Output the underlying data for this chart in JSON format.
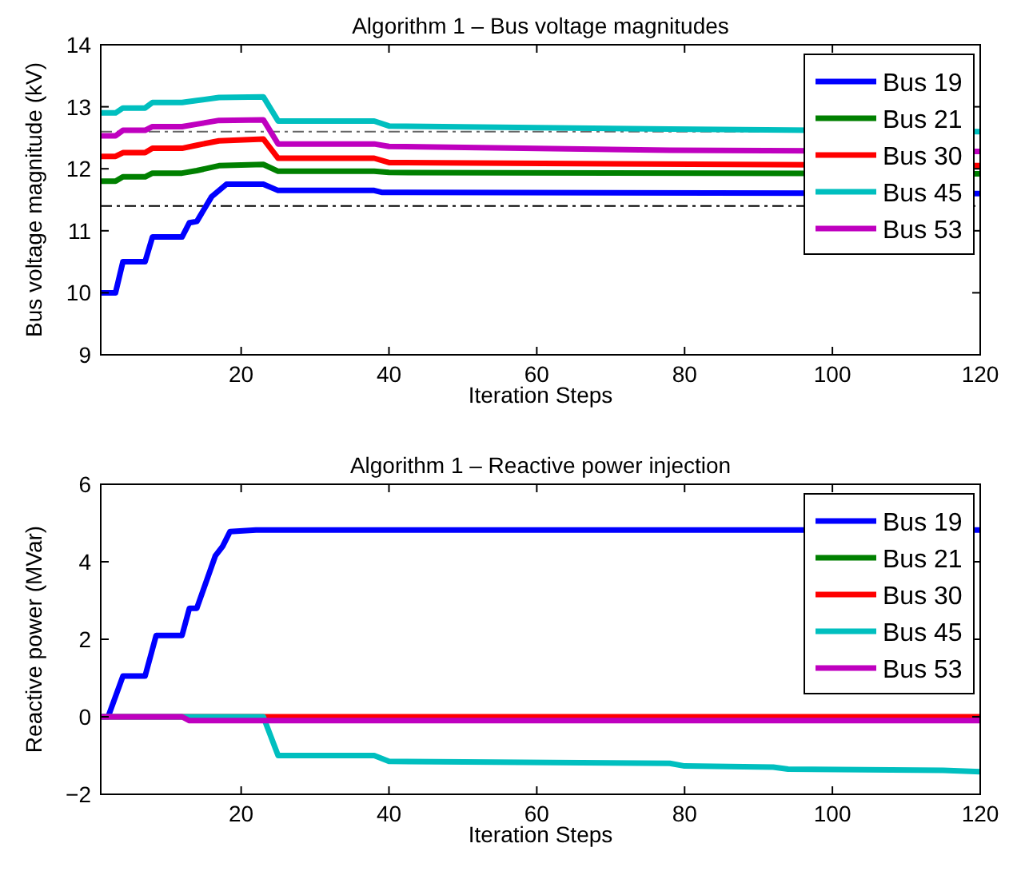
{
  "chart_data": [
    {
      "type": "line",
      "title": "Algorithm 1 – Bus voltage magnitudes",
      "xlabel": "Iteration Steps",
      "ylabel": "Bus voltage magnitude (kV)",
      "xlim": [
        1,
        120
      ],
      "xticks": [
        20,
        40,
        60,
        80,
        100,
        120
      ],
      "ylim": [
        9,
        14
      ],
      "yticks": [
        9,
        10,
        11,
        12,
        13,
        14
      ],
      "grid": false,
      "legend": "top right",
      "line_style": "solid",
      "marker": "none",
      "ref_lines": [
        {
          "axis": "y",
          "value": 11.4,
          "color": "#000000",
          "line_style": "dashed"
        },
        {
          "axis": "y",
          "value": 12.6,
          "color": "#666666",
          "line_style": "dashed"
        }
      ],
      "series": [
        {
          "name": "Bus 19",
          "color": "#0000ff",
          "x": [
            1,
            3,
            4,
            7,
            8,
            12,
            13,
            14,
            16,
            17,
            18,
            23,
            25,
            38,
            39,
            120
          ],
          "values": [
            10,
            10,
            10.5,
            10.5,
            10.9,
            10.9,
            11.13,
            11.15,
            11.55,
            11.65,
            11.75,
            11.75,
            11.65,
            11.65,
            11.62,
            11.6
          ]
        },
        {
          "name": "Bus 21",
          "color": "#008000",
          "x": [
            1,
            3,
            4,
            7,
            8,
            12,
            14,
            17,
            23,
            25,
            38,
            40,
            120
          ],
          "values": [
            11.8,
            11.8,
            11.87,
            11.87,
            11.93,
            11.93,
            11.97,
            12.05,
            12.07,
            11.96,
            11.96,
            11.94,
            11.92
          ]
        },
        {
          "name": "Bus 30",
          "color": "#ff0000",
          "x": [
            1,
            3,
            4,
            7,
            8,
            12,
            14,
            17,
            23,
            25,
            38,
            40,
            120
          ],
          "values": [
            12.2,
            12.2,
            12.26,
            12.26,
            12.33,
            12.33,
            12.38,
            12.45,
            12.48,
            12.17,
            12.17,
            12.1,
            12.05
          ]
        },
        {
          "name": "Bus 45",
          "color": "#00bfbf",
          "x": [
            1,
            3,
            4,
            7,
            8,
            12,
            14,
            17,
            23,
            25,
            38,
            40,
            78,
            120
          ],
          "values": [
            12.9,
            12.9,
            12.98,
            12.98,
            13.07,
            13.07,
            13.1,
            13.15,
            13.16,
            12.77,
            12.77,
            12.69,
            12.64,
            12.6
          ]
        },
        {
          "name": "Bus 53",
          "color": "#bf00bf",
          "x": [
            1,
            3,
            4,
            7,
            8,
            12,
            14,
            17,
            23,
            25,
            38,
            40,
            78,
            120
          ],
          "values": [
            12.53,
            12.53,
            12.62,
            12.62,
            12.68,
            12.68,
            12.72,
            12.78,
            12.79,
            12.4,
            12.4,
            12.36,
            12.3,
            12.28
          ]
        }
      ]
    },
    {
      "type": "line",
      "title": "Algorithm 1 – Reactive power injection",
      "xlabel": "Iteration Steps",
      "ylabel": "Reactive power (MVar)",
      "xlim": [
        1,
        120
      ],
      "xticks": [
        20,
        40,
        60,
        80,
        100,
        120
      ],
      "ylim": [
        -2,
        6
      ],
      "yticks": [
        {
          "value": -2,
          "label": "−2"
        },
        0,
        2,
        4,
        6
      ],
      "grid": false,
      "legend": "top right",
      "line_style": "solid",
      "marker": "none",
      "series": [
        {
          "name": "Bus 19",
          "color": "#0000ff",
          "x": [
            1,
            2,
            4,
            7,
            8.5,
            12,
            13,
            14,
            16.5,
            17.5,
            18.5,
            22,
            120
          ],
          "values": [
            0,
            0,
            1.05,
            1.05,
            2.1,
            2.1,
            2.8,
            2.8,
            4.15,
            4.4,
            4.78,
            4.82,
            4.82
          ]
        },
        {
          "name": "Bus 21",
          "color": "#008000"
        },
        {
          "name": "Bus 30",
          "color": "#ff0000",
          "x": [
            1,
            120
          ],
          "values": [
            0,
            0
          ]
        },
        {
          "name": "Bus 45",
          "color": "#00bfbf",
          "x": [
            1,
            23,
            25,
            38,
            40,
            78,
            80,
            92,
            94,
            115,
            120
          ],
          "values": [
            0,
            0,
            -1,
            -1,
            -1.15,
            -1.2,
            -1.27,
            -1.3,
            -1.35,
            -1.38,
            -1.42
          ]
        },
        {
          "name": "Bus 53",
          "color": "#bf00bf",
          "x": [
            1,
            12,
            13,
            120
          ],
          "values": [
            0,
            0,
            -0.1,
            -0.1
          ]
        }
      ]
    }
  ]
}
